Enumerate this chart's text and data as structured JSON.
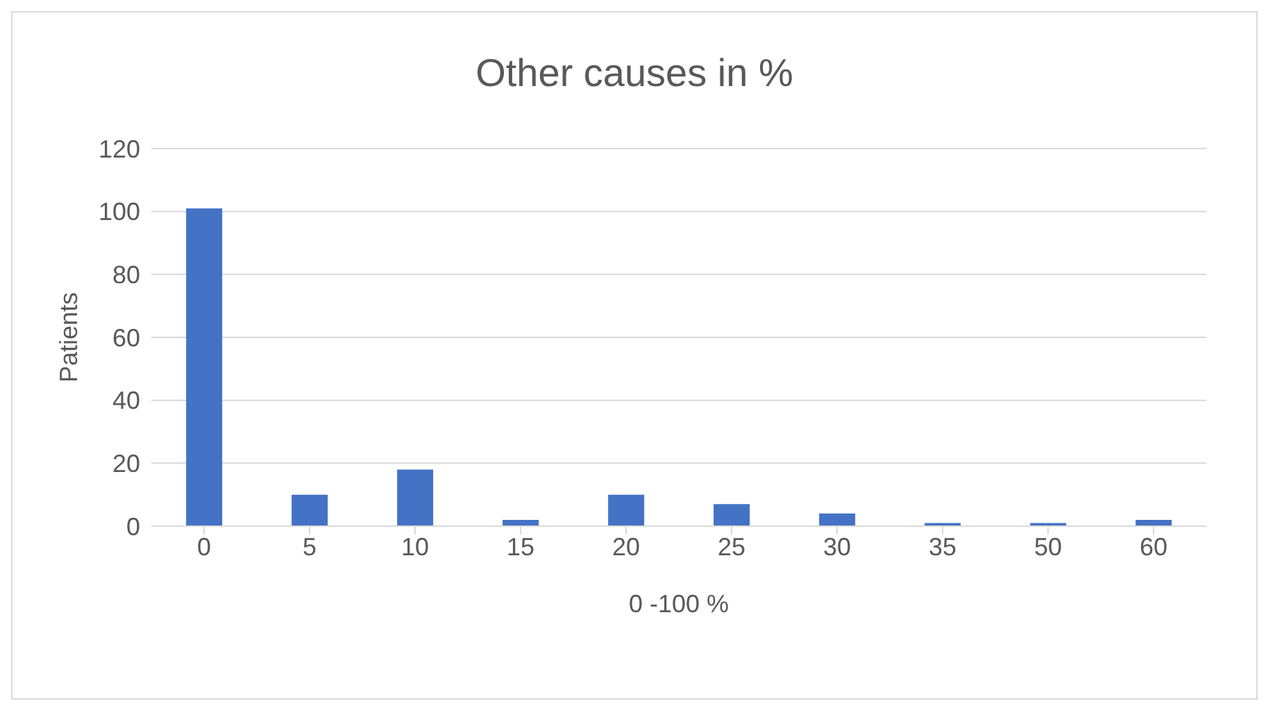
{
  "chart_data": {
    "type": "bar",
    "title": "Other causes in %",
    "xlabel": "0 -100 %",
    "ylabel": "Patients",
    "categories": [
      "0",
      "5",
      "10",
      "15",
      "20",
      "25",
      "30",
      "35",
      "50",
      "60"
    ],
    "values": [
      101,
      10,
      18,
      2,
      10,
      7,
      4,
      1,
      1,
      2
    ],
    "color": "#4472c4",
    "ylim": [
      0,
      120
    ],
    "yticks": [
      0,
      20,
      40,
      60,
      80,
      100,
      120
    ],
    "grid": "y"
  }
}
